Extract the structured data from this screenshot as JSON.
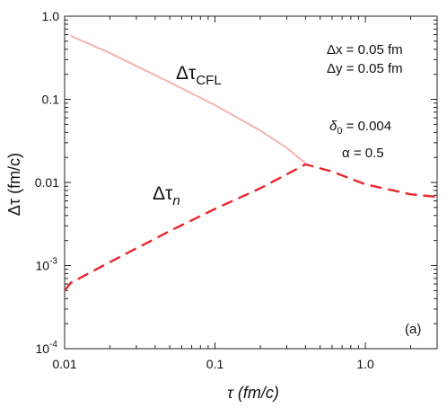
{
  "chart_data": {
    "type": "line",
    "xlabel": "τ (fm/c)",
    "ylabel": "Δτ (fm/c)",
    "x_scale": "log",
    "y_scale": "log",
    "xlim": [
      0.01,
      3.0
    ],
    "ylim": [
      0.0001,
      1.0
    ],
    "x_ticks": [
      {
        "value": 0.01,
        "label": "0.01"
      },
      {
        "value": 0.1,
        "label": "0.1"
      },
      {
        "value": 1.0,
        "label": "1.0"
      }
    ],
    "y_ticks": [
      {
        "value": 1.0,
        "label": "1.0",
        "exp": ""
      },
      {
        "value": 0.1,
        "label": "0.1",
        "exp": ""
      },
      {
        "value": 0.01,
        "label": "0.01",
        "exp": ""
      },
      {
        "value": 0.001,
        "label": "10",
        "exp": "-3"
      },
      {
        "value": 0.0001,
        "label": "10",
        "exp": "-4"
      }
    ],
    "grid": false,
    "series": [
      {
        "name_main": "Δτ",
        "name_sub": "CFL",
        "color": "#f5b3b3",
        "style": "solid",
        "x": [
          0.011,
          0.02,
          0.05,
          0.1,
          0.2,
          0.3,
          0.4
        ],
        "y": [
          0.58,
          0.36,
          0.16,
          0.085,
          0.042,
          0.026,
          0.017
        ]
      },
      {
        "name_main": "Δτ",
        "name_sub": "n",
        "color": "#e8262c",
        "style": "dashed",
        "x": [
          0.01,
          0.011,
          0.02,
          0.05,
          0.1,
          0.2,
          0.4,
          0.6,
          1.0,
          2.0,
          3.0
        ],
        "y": [
          0.0005,
          0.00062,
          0.0011,
          0.0026,
          0.0048,
          0.0085,
          0.0165,
          0.0135,
          0.0095,
          0.0072,
          0.0067
        ]
      }
    ],
    "annotations": {
      "params_1": "Δx = 0.05 fm",
      "params_2": "Δy = 0.05 fm",
      "delta_main": "δ",
      "delta_sub": "0",
      "delta_value": " = 0.004",
      "alpha": "α = 0.5",
      "panel": "(a)"
    }
  }
}
